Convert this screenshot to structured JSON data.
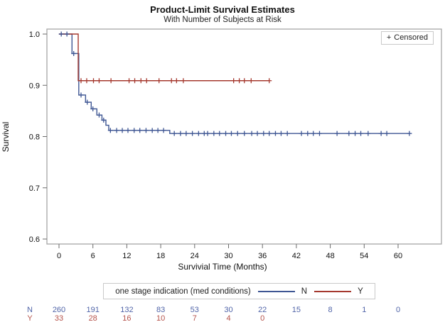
{
  "title": "Product-Limit Survival Estimates",
  "subtitle": "With Number of Subjects at Risk",
  "censored_legend": {
    "marker": "+",
    "label": "Censored"
  },
  "axes": {
    "y_label": "Survival",
    "x_label": "Survivial Time (Months)",
    "y_ticks": [
      "1.0",
      "0.9",
      "0.8",
      "0.7",
      "0.6"
    ],
    "x_ticks": [
      "0",
      "6",
      "12",
      "18",
      "24",
      "30",
      "36",
      "42",
      "48",
      "54",
      "60"
    ]
  },
  "legend": {
    "title": "one stage indication (med conditions)",
    "entries": [
      {
        "label": "N",
        "color": "#3E5693"
      },
      {
        "label": "Y",
        "color": "#A5382E"
      }
    ]
  },
  "chart_data": {
    "type": "line",
    "subtype": "kaplan-meier-step-survival",
    "title": "Product-Limit Survival Estimates",
    "xlabel": "Survivial Time (Months)",
    "ylabel": "Survival",
    "xlim": [
      0,
      60
    ],
    "ylim": [
      0.6,
      1.0
    ],
    "grid": false,
    "legend_position": "bottom",
    "series": [
      {
        "name": "N",
        "color": "#3E5693",
        "steps": [
          [
            0,
            1.0
          ],
          [
            2.3,
            0.962
          ],
          [
            3.5,
            0.881
          ],
          [
            4.7,
            0.867
          ],
          [
            5.7,
            0.854
          ],
          [
            6.7,
            0.842
          ],
          [
            7.6,
            0.832
          ],
          [
            8.3,
            0.822
          ],
          [
            8.8,
            0.812
          ],
          [
            19.6,
            0.806
          ]
        ],
        "end_time": 62.0,
        "censor_times": [
          0.4,
          1.4,
          2.6,
          3.9,
          5.0,
          6.0,
          7.1,
          7.9,
          9.1,
          10.2,
          11.2,
          12.2,
          13.3,
          14.3,
          15.4,
          16.5,
          17.5,
          18.5,
          20.4,
          21.5,
          22.5,
          23.6,
          24.7,
          25.7,
          26.3,
          27.4,
          28.4,
          29.5,
          30.5,
          31.6,
          32.8,
          34.1,
          35.1,
          36.2,
          37.2,
          38.3,
          39.3,
          40.4,
          42.9,
          44.0,
          45.0,
          46.1,
          49.2,
          51.3,
          52.4,
          53.4,
          54.7,
          57.0,
          58.0,
          62.0
        ]
      },
      {
        "name": "Y",
        "color": "#A5382E",
        "steps": [
          [
            0,
            1.0
          ],
          [
            3.4,
            0.909
          ]
        ],
        "end_time": 37.2,
        "censor_times": [
          3.9,
          4.9,
          6.1,
          7.1,
          9.2,
          12.4,
          13.4,
          14.5,
          15.5,
          17.7,
          19.9,
          20.8,
          22.0,
          30.9,
          31.9,
          32.8,
          34.0,
          37.2
        ]
      }
    ]
  },
  "at_risk": {
    "times": [
      0,
      6,
      12,
      18,
      24,
      30,
      36,
      42,
      48,
      54,
      60
    ],
    "rows": [
      {
        "label": "N",
        "color": "#5064A8",
        "values": [
          260,
          191,
          132,
          83,
          53,
          30,
          22,
          15,
          8,
          1,
          0
        ]
      },
      {
        "label": "Y",
        "color": "#B5524A",
        "values": [
          33,
          28,
          16,
          10,
          7,
          4,
          0
        ]
      }
    ]
  }
}
